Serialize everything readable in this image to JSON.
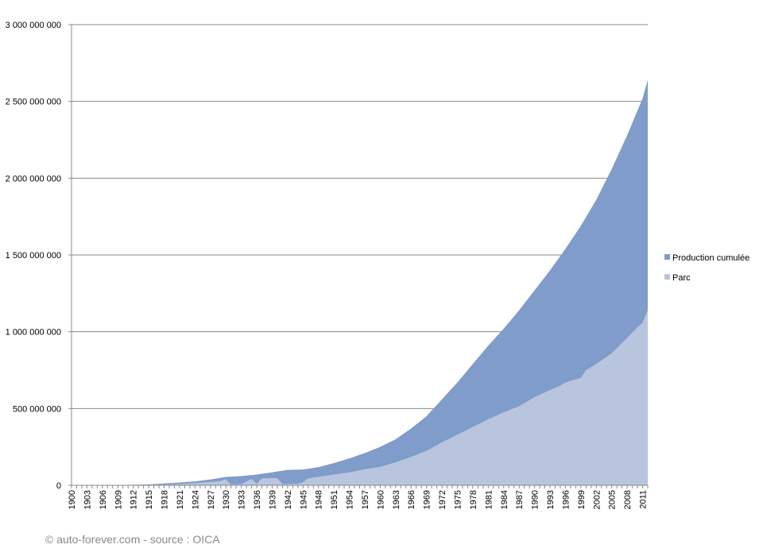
{
  "chart_data": {
    "type": "area",
    "stacked": false,
    "y_ticks": [
      "0",
      "500 000 000",
      "1 000 000 000",
      "1 500 000 000",
      "2 000 000 000",
      "2 500 000 000",
      "3 000 000 000"
    ],
    "ylim": [
      0,
      3000000000
    ],
    "xlim": [
      1900,
      2012
    ],
    "x_tick_labels": [
      "1900",
      "1903",
      "1906",
      "1909",
      "1912",
      "1915",
      "1918",
      "1921",
      "1924",
      "1927",
      "1930",
      "1933",
      "1936",
      "1939",
      "1942",
      "1945",
      "1948",
      "1951",
      "1954",
      "1957",
      "1960",
      "1963",
      "1966",
      "1969",
      "1972",
      "1975",
      "1978",
      "1981",
      "1984",
      "1987",
      "1990",
      "1993",
      "1996",
      "1999",
      "2002",
      "2005",
      "2008",
      "2011"
    ],
    "grid": "horizontal",
    "legend_position": "right",
    "series": [
      {
        "name": "Production cumulée",
        "color": "#7f9cca",
        "points": [
          [
            1900,
            0
          ],
          [
            1905,
            200000
          ],
          [
            1910,
            2000000
          ],
          [
            1915,
            6000000
          ],
          [
            1918,
            12000000
          ],
          [
            1921,
            18000000
          ],
          [
            1924,
            26000000
          ],
          [
            1927,
            38000000
          ],
          [
            1930,
            54000000
          ],
          [
            1933,
            60000000
          ],
          [
            1936,
            70000000
          ],
          [
            1939,
            85000000
          ],
          [
            1942,
            100000000
          ],
          [
            1945,
            103000000
          ],
          [
            1948,
            118000000
          ],
          [
            1951,
            145000000
          ],
          [
            1954,
            175000000
          ],
          [
            1957,
            210000000
          ],
          [
            1960,
            250000000
          ],
          [
            1963,
            300000000
          ],
          [
            1966,
            370000000
          ],
          [
            1969,
            450000000
          ],
          [
            1972,
            560000000
          ],
          [
            1975,
            670000000
          ],
          [
            1978,
            790000000
          ],
          [
            1981,
            910000000
          ],
          [
            1984,
            1020000000
          ],
          [
            1987,
            1140000000
          ],
          [
            1990,
            1270000000
          ],
          [
            1993,
            1400000000
          ],
          [
            1996,
            1540000000
          ],
          [
            1999,
            1690000000
          ],
          [
            2002,
            1860000000
          ],
          [
            2005,
            2060000000
          ],
          [
            2008,
            2280000000
          ],
          [
            2011,
            2520000000
          ],
          [
            2012,
            2640000000
          ]
        ]
      },
      {
        "name": "Parc",
        "color": "#b9c5df",
        "points": [
          [
            1900,
            0
          ],
          [
            1905,
            100000
          ],
          [
            1910,
            1000000
          ],
          [
            1915,
            3000000
          ],
          [
            1918,
            5000000
          ],
          [
            1921,
            8000000
          ],
          [
            1924,
            14000000
          ],
          [
            1927,
            22000000
          ],
          [
            1929,
            28000000
          ],
          [
            1930,
            40000000
          ],
          [
            1931,
            5000000
          ],
          [
            1933,
            8000000
          ],
          [
            1935,
            42000000
          ],
          [
            1936,
            10000000
          ],
          [
            1937,
            45000000
          ],
          [
            1939,
            48000000
          ],
          [
            1940,
            45000000
          ],
          [
            1941,
            8000000
          ],
          [
            1944,
            10000000
          ],
          [
            1945,
            20000000
          ],
          [
            1946,
            45000000
          ],
          [
            1948,
            55000000
          ],
          [
            1951,
            70000000
          ],
          [
            1954,
            85000000
          ],
          [
            1957,
            105000000
          ],
          [
            1960,
            120000000
          ],
          [
            1963,
            150000000
          ],
          [
            1966,
            185000000
          ],
          [
            1969,
            225000000
          ],
          [
            1972,
            280000000
          ],
          [
            1975,
            330000000
          ],
          [
            1978,
            380000000
          ],
          [
            1981,
            430000000
          ],
          [
            1984,
            475000000
          ],
          [
            1987,
            515000000
          ],
          [
            1990,
            575000000
          ],
          [
            1993,
            620000000
          ],
          [
            1995,
            650000000
          ],
          [
            1996,
            670000000
          ],
          [
            1999,
            700000000
          ],
          [
            2000,
            750000000
          ],
          [
            2002,
            790000000
          ],
          [
            2005,
            860000000
          ],
          [
            2008,
            960000000
          ],
          [
            2010,
            1030000000
          ],
          [
            2011,
            1060000000
          ],
          [
            2012,
            1140000000
          ]
        ]
      }
    ]
  },
  "footer": {
    "text": "© auto-forever.com  - source : OICA"
  }
}
